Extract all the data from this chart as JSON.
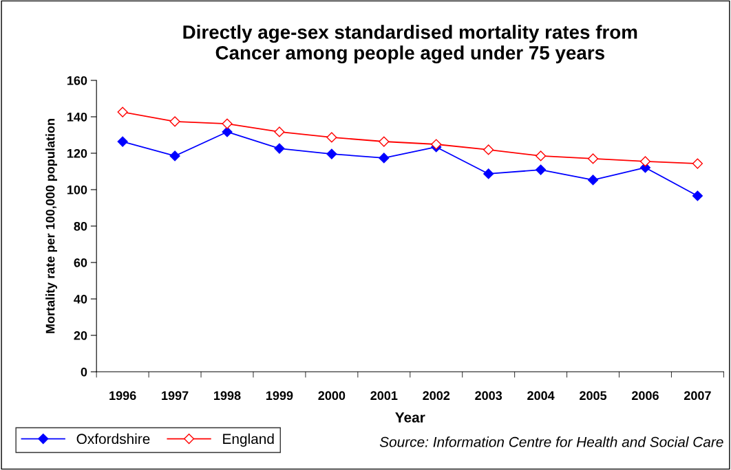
{
  "chart_data": {
    "type": "line",
    "title": "Directly age-sex standardised mortality rates from\nCancer among people aged under 75 years",
    "xlabel": "Year",
    "ylabel": "Mortality rate per 100,000 population",
    "categories": [
      "1996",
      "1997",
      "1998",
      "1999",
      "2000",
      "2001",
      "2002",
      "2003",
      "2004",
      "2005",
      "2006",
      "2007"
    ],
    "series": [
      {
        "name": "Oxfordshire",
        "color": "#0000ff",
        "marker": "diamond",
        "values": [
          126.4,
          118.5,
          131.7,
          122.6,
          119.6,
          117.4,
          123.4,
          108.7,
          110.9,
          105.3,
          112.1,
          96.6
        ]
      },
      {
        "name": "England",
        "color": "#ff0000",
        "marker": "diamond",
        "values": [
          142.6,
          137.4,
          136.2,
          131.7,
          128.7,
          126.4,
          124.9,
          121.9,
          118.5,
          117.0,
          115.5,
          114.3
        ]
      }
    ],
    "ylim": [
      0,
      160
    ],
    "yticks": [
      0,
      20,
      40,
      60,
      80,
      100,
      120,
      140,
      160
    ],
    "grid": false,
    "legend": "bottom left",
    "line_style": "solid",
    "annotations": [
      "Source: Information Centre for Health and Social Care"
    ]
  }
}
